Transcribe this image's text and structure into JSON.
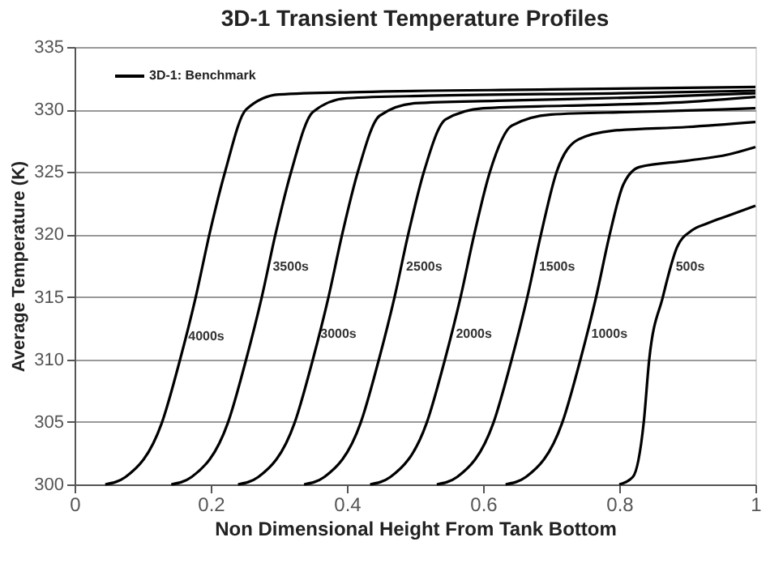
{
  "chart_data": {
    "type": "line",
    "title": "3D-1 Transient Temperature Profiles",
    "xlabel": "Non Dimensional Height From Tank Bottom",
    "ylabel": "Average Temperature (K)",
    "xlim": [
      0,
      1
    ],
    "xticks": [
      0,
      0.2,
      0.4,
      0.6,
      0.8,
      1
    ],
    "ylim": [
      300,
      335
    ],
    "yticks": [
      300,
      305,
      310,
      315,
      320,
      325,
      330,
      335
    ],
    "grid": "y",
    "legend": "top left",
    "marker": "none",
    "line_style": "solid",
    "series": [
      {
        "name": "3D-1: Benchmark",
        "color": "#000000",
        "x": [
          0.045,
          0.075,
          0.128,
          0.155,
          0.178,
          0.198,
          0.221,
          0.252,
          0.3,
          0.42,
          0.7,
          1
        ],
        "values": [
          300,
          300.6,
          304.9,
          310,
          315,
          320,
          325,
          330,
          331.2,
          331.4,
          331.6,
          331.8
        ]
      },
      {
        "color": "#000000",
        "x": [
          0.142,
          0.172,
          0.225,
          0.252,
          0.275,
          0.295,
          0.318,
          0.35,
          0.4,
          0.52,
          0.8,
          1
        ],
        "values": [
          300,
          300.6,
          304.9,
          310,
          315,
          320,
          325,
          329.8,
          330.9,
          331.1,
          331.3,
          331.5
        ]
      },
      {
        "color": "#000000",
        "x": [
          0.24,
          0.27,
          0.323,
          0.35,
          0.373,
          0.393,
          0.416,
          0.448,
          0.5,
          0.62,
          0.85,
          1
        ],
        "values": [
          300,
          300.6,
          304.9,
          310,
          315,
          320,
          325,
          329.5,
          330.5,
          330.7,
          331,
          331.3
        ]
      },
      {
        "color": "#000000",
        "x": [
          0.337,
          0.367,
          0.42,
          0.447,
          0.47,
          0.49,
          0.513,
          0.545,
          0.6,
          0.72,
          0.9,
          1
        ],
        "values": [
          300,
          300.6,
          304.9,
          310,
          315,
          320,
          325,
          329.2,
          330.1,
          330.3,
          330.6,
          331
        ]
      },
      {
        "color": "#000000",
        "x": [
          0.434,
          0.464,
          0.517,
          0.544,
          0.567,
          0.587,
          0.61,
          0.642,
          0.7,
          0.82,
          0.95,
          1
        ],
        "values": [
          300,
          300.6,
          304.9,
          310,
          315,
          320,
          325,
          328.7,
          329.6,
          329.8,
          330,
          330.1
        ]
      },
      {
        "color": "#000000",
        "x": [
          0.532,
          0.562,
          0.615,
          0.642,
          0.665,
          0.685,
          0.708,
          0.74,
          0.79,
          0.9,
          1
        ],
        "values": [
          300,
          300.6,
          304.9,
          310,
          315,
          320,
          325,
          327.6,
          328.3,
          328.6,
          329
        ]
      },
      {
        "color": "#000000",
        "x": [
          0.633,
          0.663,
          0.716,
          0.743,
          0.766,
          0.786,
          0.806,
          0.83,
          0.9,
          0.96,
          1
        ],
        "values": [
          300,
          300.6,
          304.9,
          310,
          315,
          320,
          324,
          325.4,
          325.9,
          326.4,
          327
        ]
      },
      {
        "color": "#000000",
        "x": [
          0.8,
          0.82,
          0.836,
          0.844,
          0.864,
          0.885,
          0.906,
          0.93,
          0.96,
          1
        ],
        "values": [
          300,
          300.6,
          305,
          310,
          315,
          319,
          320.3,
          320.9,
          321.5,
          322.3
        ]
      }
    ],
    "annotations": [
      {
        "text": "4000s",
        "x": 0.167,
        "y": 311.8
      },
      {
        "text": "3500s",
        "x": 0.291,
        "y": 317.4
      },
      {
        "text": "3000s",
        "x": 0.361,
        "y": 312
      },
      {
        "text": "2500s",
        "x": 0.487,
        "y": 317.4
      },
      {
        "text": "2000s",
        "x": 0.56,
        "y": 312
      },
      {
        "text": "1500s",
        "x": 0.682,
        "y": 317.4
      },
      {
        "text": "1000s",
        "x": 0.759,
        "y": 312
      },
      {
        "text": "500s",
        "x": 0.883,
        "y": 317.4
      }
    ]
  }
}
